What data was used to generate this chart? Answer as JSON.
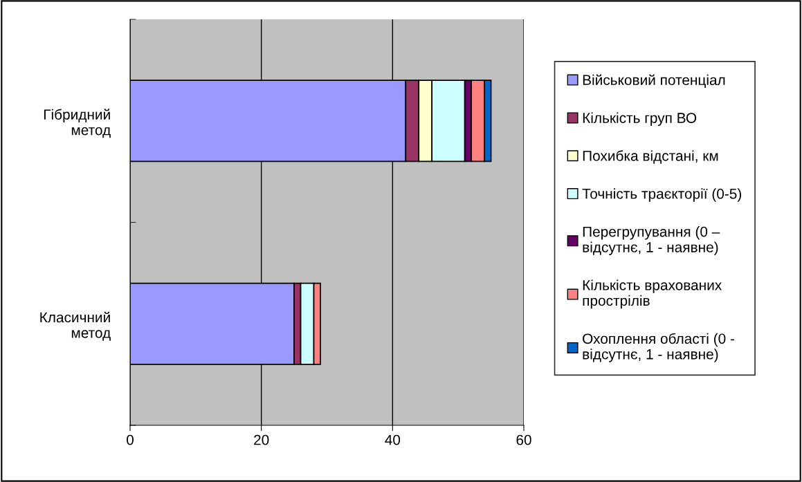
{
  "chart_data": {
    "type": "bar",
    "orientation": "horizontal",
    "stacked": true,
    "categories": [
      "Гібридний\nметод",
      "Класичний\nметод"
    ],
    "series": [
      {
        "name": "Військовий потенціал",
        "color": "#9999ff",
        "values": [
          42,
          25
        ]
      },
      {
        "name": "Кількість груп ВО",
        "color": "#993366",
        "values": [
          2,
          1
        ]
      },
      {
        "name": "Похибка відстані, км",
        "color": "#ffffcc",
        "values": [
          2,
          0
        ]
      },
      {
        "name": "Точність траєкторії (0-5)",
        "color": "#ccffff",
        "values": [
          5,
          2
        ]
      },
      {
        "name": "Перегрупування (0 –\nвідсутнє, 1 - наявне)",
        "color": "#660066",
        "values": [
          1,
          0
        ]
      },
      {
        "name": "Кількість врахованих\nпрострілів",
        "color": "#ff8080",
        "values": [
          2,
          1
        ]
      },
      {
        "name": "Охоплення області (0 -\nвідсутнє, 1 - наявне)",
        "color": "#0066cc",
        "values": [
          1,
          0
        ]
      }
    ],
    "xlim": [
      0,
      60
    ],
    "xticks": [
      0,
      20,
      40,
      60
    ],
    "grid": "x",
    "legend": "right"
  }
}
